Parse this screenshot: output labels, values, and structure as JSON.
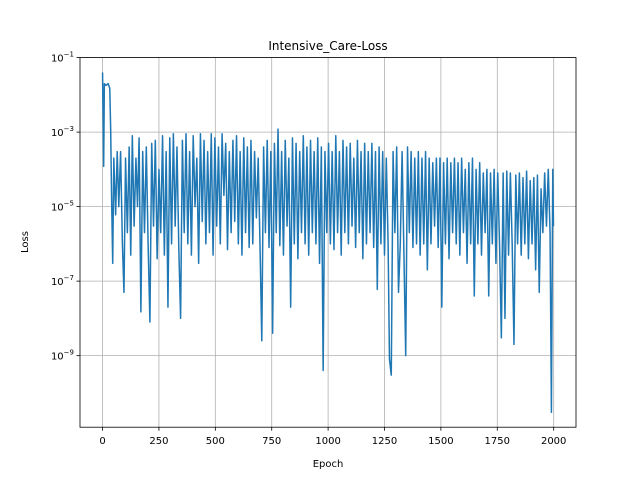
{
  "chart_data": {
    "type": "line",
    "title": "Intensive_Care-Loss",
    "xlabel": "Epoch",
    "ylabel": "Loss",
    "log_y": true,
    "grid": true,
    "color": "#1f77b4",
    "xlim": [
      -99.95,
      2098.95
    ],
    "xticks": [
      0,
      250,
      500,
      750,
      1000,
      1250,
      1500,
      1750,
      2000
    ],
    "ylim": [
      1.2e-11,
      0.1
    ],
    "yticks": [
      {
        "value": 0.1,
        "label": "10^−1"
      },
      {
        "value": 0.001,
        "label": "10^−3"
      },
      {
        "value": 1e-05,
        "label": "10^−5"
      },
      {
        "value": 1e-07,
        "label": "10^−7"
      },
      {
        "value": 1e-09,
        "label": "10^−9"
      }
    ],
    "x": [
      0,
      5,
      8,
      15,
      25,
      32,
      36,
      40,
      45,
      50,
      58,
      65,
      72,
      80,
      88,
      95,
      102,
      110,
      118,
      125,
      132,
      140,
      148,
      155,
      162,
      170,
      178,
      186,
      194,
      202,
      210,
      218,
      226,
      234,
      242,
      250,
      258,
      266,
      274,
      282,
      290,
      298,
      306,
      314,
      322,
      330,
      338,
      346,
      354,
      362,
      370,
      378,
      386,
      394,
      402,
      410,
      418,
      426,
      434,
      442,
      450,
      458,
      466,
      474,
      482,
      490,
      498,
      506,
      514,
      522,
      530,
      538,
      546,
      554,
      562,
      570,
      578,
      586,
      594,
      602,
      610,
      618,
      626,
      634,
      642,
      650,
      658,
      666,
      674,
      682,
      690,
      698,
      706,
      714,
      722,
      730,
      738,
      746,
      754,
      762,
      770,
      778,
      786,
      794,
      802,
      810,
      818,
      826,
      834,
      842,
      850,
      858,
      866,
      874,
      882,
      890,
      898,
      906,
      914,
      922,
      930,
      938,
      946,
      954,
      962,
      970,
      978,
      986,
      994,
      1002,
      1010,
      1018,
      1026,
      1034,
      1042,
      1050,
      1058,
      1066,
      1074,
      1082,
      1090,
      1098,
      1106,
      1114,
      1122,
      1130,
      1138,
      1146,
      1154,
      1162,
      1170,
      1178,
      1186,
      1194,
      1202,
      1210,
      1218,
      1226,
      1234,
      1242,
      1250,
      1258,
      1266,
      1272,
      1280,
      1288,
      1296,
      1304,
      1312,
      1320,
      1328,
      1336,
      1344,
      1352,
      1360,
      1368,
      1376,
      1384,
      1392,
      1400,
      1408,
      1416,
      1424,
      1432,
      1440,
      1448,
      1456,
      1464,
      1472,
      1480,
      1488,
      1496,
      1504,
      1512,
      1520,
      1528,
      1536,
      1544,
      1552,
      1560,
      1568,
      1576,
      1584,
      1592,
      1600,
      1608,
      1616,
      1624,
      1632,
      1640,
      1648,
      1656,
      1664,
      1672,
      1680,
      1688,
      1696,
      1704,
      1712,
      1720,
      1728,
      1736,
      1744,
      1752,
      1760,
      1768,
      1776,
      1784,
      1792,
      1800,
      1808,
      1816,
      1824,
      1832,
      1840,
      1848,
      1856,
      1864,
      1872,
      1880,
      1888,
      1896,
      1904,
      1912,
      1920,
      1928,
      1936,
      1944,
      1952,
      1960,
      1968,
      1976,
      1984,
      1990,
      1996,
      1999
    ],
    "values": [
      0.04,
      0.00012,
      0.02,
      0.018,
      0.02,
      0.015,
      0.0012,
      2e-05,
      3e-07,
      0.0002,
      6e-06,
      0.0003,
      1e-05,
      0.0003,
      1e-06,
      5e-08,
      0.0002,
      2e-06,
      0.0004,
      5e-07,
      0.0008,
      3e-06,
      0.0002,
      1e-05,
      0.0007,
      1.5e-08,
      0.0003,
      2e-06,
      0.0004,
      1e-06,
      8e-09,
      0.0005,
      3e-06,
      0.0006,
      4e-07,
      0.0001,
      2e-06,
      0.0008,
      5e-07,
      0.0003,
      2e-08,
      0.0007,
      1e-06,
      0.0009,
      3e-06,
      0.0004,
      8e-07,
      1e-08,
      0.0006,
      2e-06,
      0.0009,
      1e-06,
      0.0003,
      5e-07,
      0.0008,
      1e-05,
      0.0002,
      3e-07,
      0.0009,
      4e-06,
      0.0006,
      1e-06,
      0.0003,
      2e-06,
      0.0009,
      5e-07,
      0.0007,
      3e-06,
      0.0004,
      1e-06,
      0.0009,
      2e-05,
      0.0005,
      7e-07,
      0.0003,
      2e-06,
      0.0006,
      4e-06,
      0.0008,
      1e-06,
      0.0003,
      5e-07,
      0.0007,
      2e-06,
      0.0004,
      8e-07,
      0.0006,
      1e-06,
      0.0003,
      5e-06,
      0.0002,
      1e-06,
      2.5e-09,
      0.0004,
      2e-06,
      0.0006,
      8e-07,
      0.0003,
      4e-09,
      0.0005,
      2e-06,
      0.0012,
      9e-07,
      0.0003,
      5e-07,
      0.0006,
      3e-06,
      0.0002,
      2e-08,
      0.0007,
      1e-06,
      0.0005,
      4e-07,
      0.0003,
      2e-06,
      0.0008,
      1e-06,
      0.0004,
      5e-07,
      0.0006,
      2e-06,
      0.0003,
      1e-06,
      0.0007,
      3e-07,
      0.0004,
      4e-10,
      0.0003,
      2e-06,
      0.0005,
      1e-06,
      0.0003,
      7e-07,
      0.0008,
      2e-06,
      0.0003,
      5e-07,
      0.0006,
      2e-06,
      0.0004,
      1e-06,
      0.0005,
      3e-06,
      0.0002,
      8e-07,
      0.0006,
      2e-06,
      0.0003,
      4e-07,
      0.0005,
      1e-06,
      0.0003,
      2e-06,
      0.0005,
      8e-07,
      0.0003,
      6e-08,
      0.0004,
      1e-06,
      0.0003,
      5e-07,
      0.0002,
      1e-06,
      8e-10,
      3e-10,
      0.0003,
      2e-06,
      0.0004,
      5e-08,
      1e-06,
      0.0003,
      6e-07,
      1e-09,
      0.0004,
      2e-06,
      0.0003,
      8e-07,
      0.0002,
      1e-06,
      0.0003,
      5e-07,
      0.0002,
      1e-06,
      0.0003,
      2e-07,
      0.0002,
      1e-06,
      0.00015,
      3e-06,
      0.0002,
      8e-07,
      0.0002,
      2e-08,
      0.00015,
      1e-06,
      0.0002,
      4e-07,
      0.00015,
      2e-06,
      0.0002,
      1e-06,
      0.00015,
      5e-07,
      0.0002,
      2e-06,
      0.0001,
      3e-07,
      0.00015,
      1e-06,
      0.0002,
      4e-08,
      0.0001,
      1e-06,
      0.00015,
      5e-07,
      8e-05,
      2e-06,
      0.0001,
      4e-08,
      8e-05,
      1e-06,
      0.0001,
      3e-07,
      8e-05,
      1e-06,
      3e-09,
      8e-05,
      1e-08,
      9e-05,
      5e-07,
      8e-05,
      1e-06,
      2e-09,
      7e-05,
      1e-06,
      8e-05,
      5e-07,
      6e-05,
      1e-06,
      9e-05,
      4e-07,
      5e-05,
      1e-06,
      6e-05,
      2e-07,
      7e-05,
      5e-08,
      3e-05,
      2e-06,
      8e-05,
      3e-06,
      0.0001,
      2e-06,
      3e-11,
      0.0001,
      3e-06
    ]
  }
}
